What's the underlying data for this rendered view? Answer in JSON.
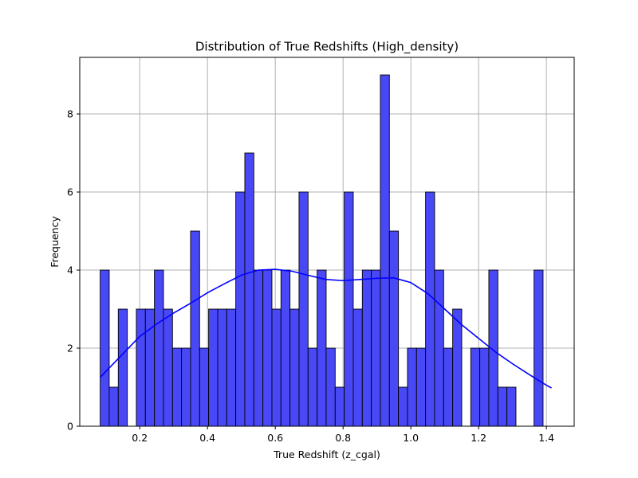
{
  "chart_data": {
    "type": "bar",
    "title": "Distribution of True Redshifts (High_density)",
    "xlabel": "True Redshift (z_cgal)",
    "ylabel": "Frequency",
    "xlim": [
      0.023,
      1.482
    ],
    "ylim": [
      0,
      9.45
    ],
    "xticks": [
      0.2,
      0.4,
      0.6,
      0.8,
      1.0,
      1.2,
      1.4
    ],
    "xtick_labels": [
      "0.2",
      "0.4",
      "0.6",
      "0.8",
      "1.0",
      "1.2",
      "1.4"
    ],
    "yticks": [
      0,
      2,
      4,
      6,
      8
    ],
    "ytick_labels": [
      "0",
      "2",
      "4",
      "6",
      "8"
    ],
    "grid": true,
    "bins": {
      "start": 0.0833,
      "width": 0.02667,
      "counts": [
        4,
        1,
        3,
        0,
        3,
        3,
        4,
        3,
        2,
        2,
        5,
        2,
        3,
        3,
        3,
        6,
        7,
        4,
        4,
        3,
        4,
        3,
        6,
        2,
        4,
        2,
        1,
        6,
        3,
        4,
        4,
        9,
        5,
        1,
        2,
        2,
        6,
        4,
        2,
        3,
        0,
        2,
        2,
        4,
        1,
        1,
        0,
        0,
        4
      ]
    },
    "kde_curve": {
      "x": [
        0.083,
        0.15,
        0.2,
        0.25,
        0.3,
        0.35,
        0.4,
        0.45,
        0.5,
        0.55,
        0.6,
        0.65,
        0.7,
        0.75,
        0.8,
        0.85,
        0.9,
        0.95,
        1.0,
        1.05,
        1.1,
        1.15,
        1.2,
        1.25,
        1.3,
        1.35,
        1.4,
        1.415
      ],
      "y": [
        1.25,
        1.85,
        2.3,
        2.62,
        2.9,
        3.15,
        3.42,
        3.65,
        3.87,
        4.0,
        4.02,
        3.97,
        3.86,
        3.76,
        3.73,
        3.76,
        3.79,
        3.8,
        3.68,
        3.4,
        3.0,
        2.6,
        2.25,
        1.9,
        1.6,
        1.32,
        1.05,
        0.98
      ]
    },
    "colors": {
      "bar_fill": "#4848f7",
      "bar_edge": "#000000",
      "kde_line": "#0000ff",
      "grid": "#b0b0b0"
    }
  }
}
